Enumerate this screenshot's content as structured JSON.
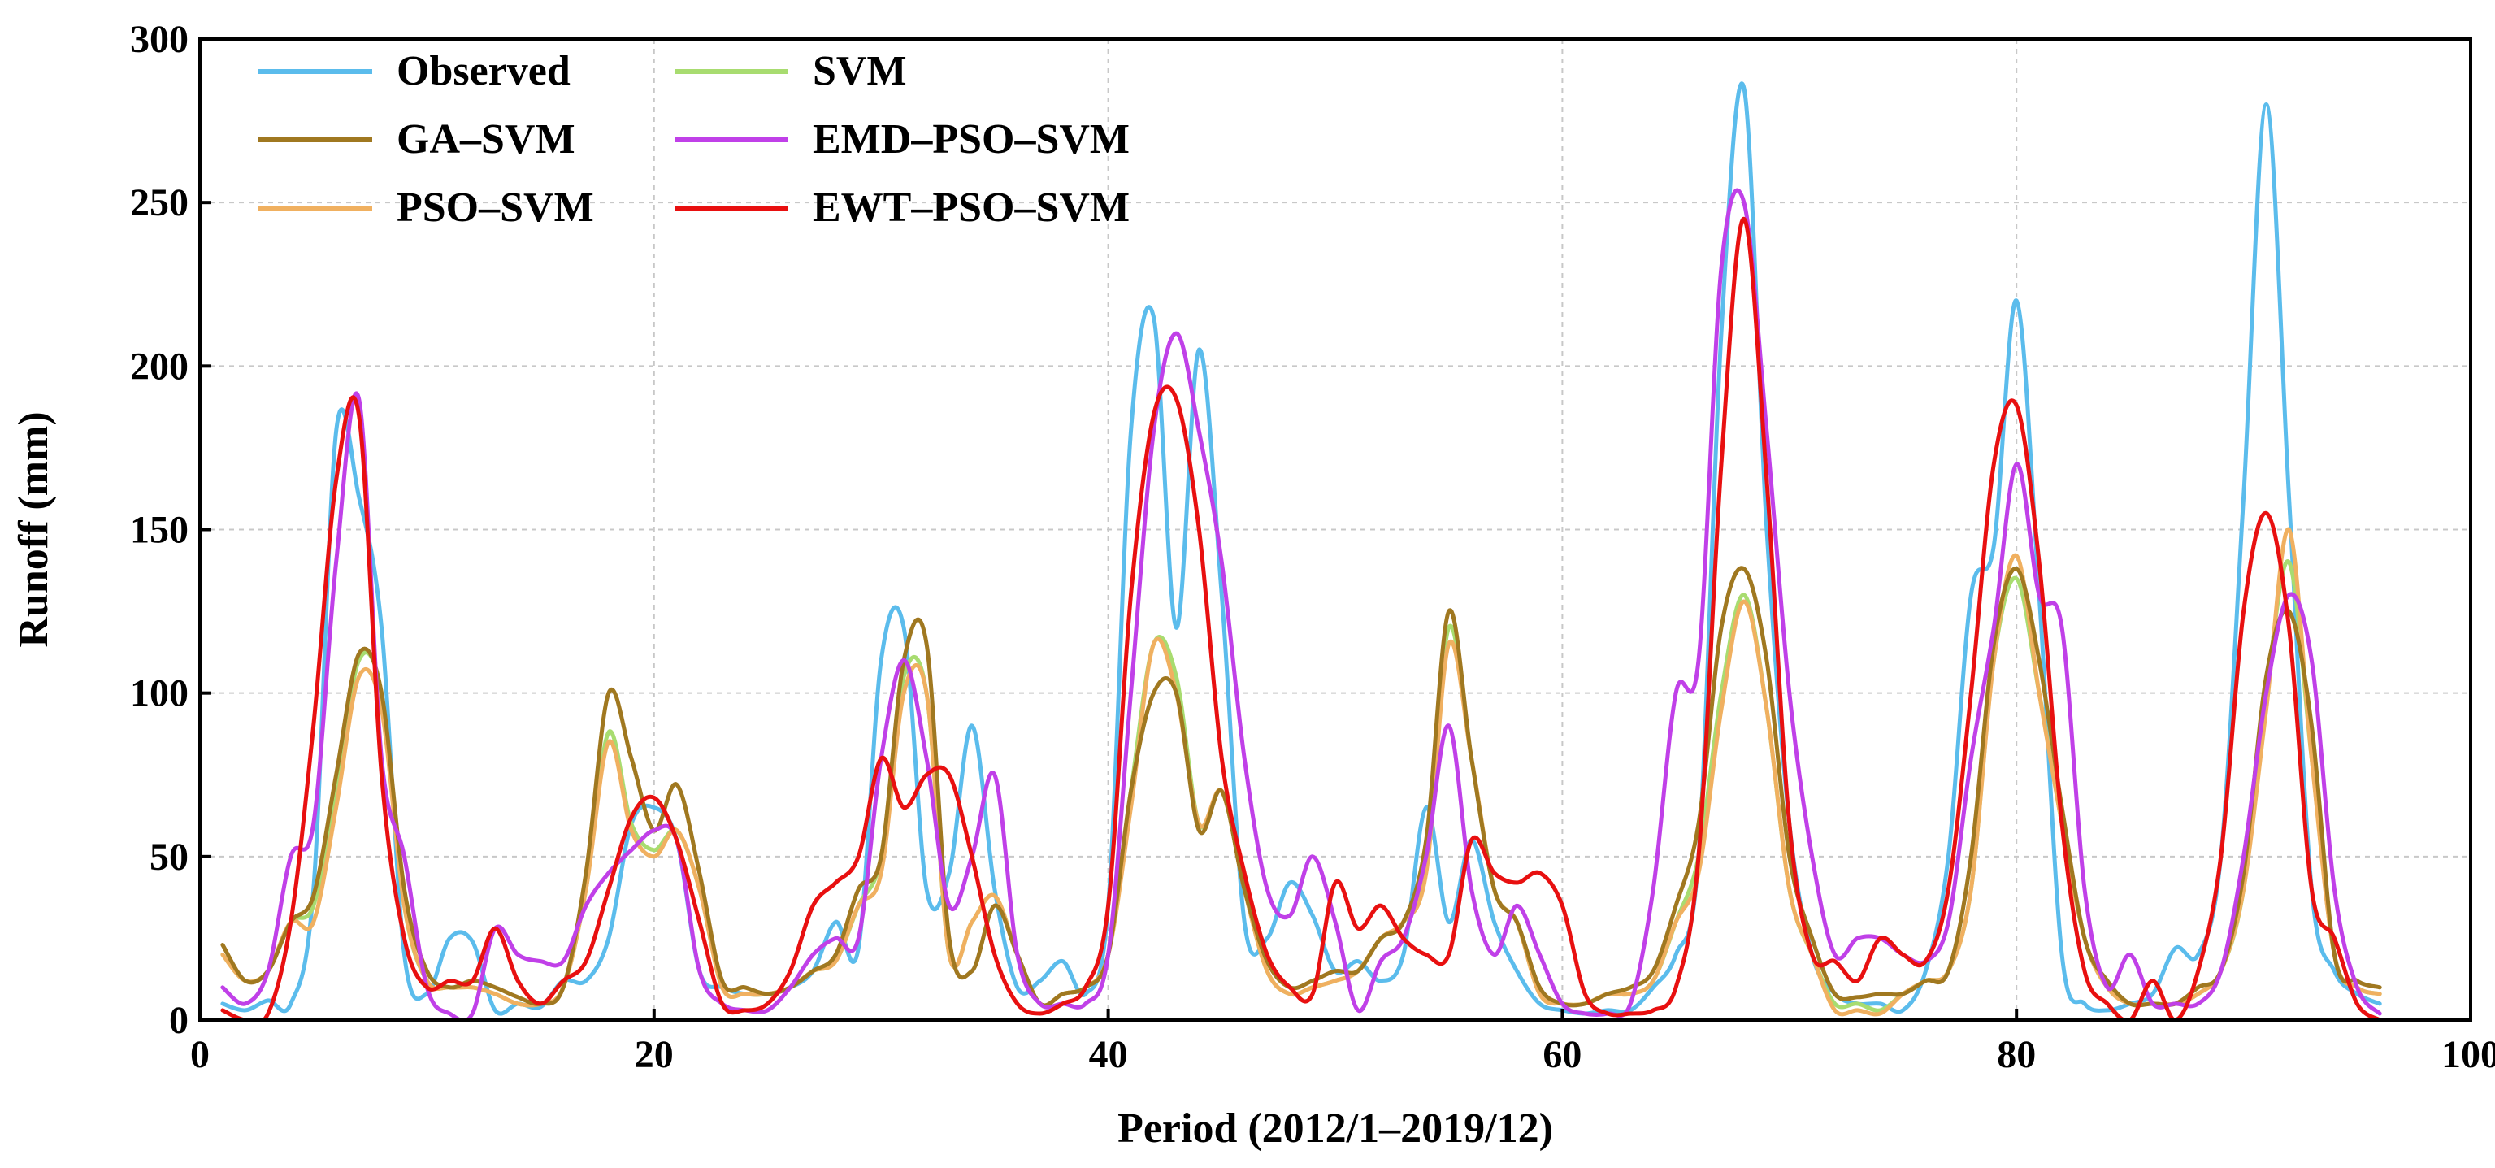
{
  "chart_data": {
    "type": "line",
    "title": "",
    "xlabel": "Period (2012/1–2019/12)",
    "ylabel": "Runoff (mm)",
    "xlim": [
      0,
      100
    ],
    "ylim": [
      0,
      300
    ],
    "xticks": [
      0,
      20,
      40,
      60,
      80,
      100
    ],
    "yticks": [
      0,
      50,
      100,
      150,
      200,
      250,
      300
    ],
    "grid": true,
    "legend_position": "top-left",
    "x": [
      1,
      2,
      3,
      4,
      5,
      6,
      7,
      8,
      9,
      10,
      11,
      12,
      13,
      14,
      15,
      16,
      17,
      18,
      19,
      20,
      21,
      22,
      23,
      24,
      25,
      26,
      27,
      28,
      29,
      30,
      31,
      32,
      33,
      34,
      35,
      36,
      37,
      38,
      39,
      40,
      41,
      42,
      43,
      44,
      45,
      46,
      47,
      48,
      49,
      50,
      51,
      52,
      53,
      54,
      55,
      56,
      57,
      58,
      59,
      60,
      61,
      62,
      63,
      64,
      65,
      66,
      67,
      68,
      69,
      70,
      71,
      72,
      73,
      74,
      75,
      76,
      77,
      78,
      79,
      80,
      81,
      82,
      83,
      84,
      85,
      86,
      87,
      88,
      89,
      90,
      91,
      92,
      93,
      94,
      95,
      96
    ],
    "series": [
      {
        "name": "Observed",
        "color": "#5bbcec",
        "values": [
          5,
          3,
          6,
          5,
          40,
          180,
          160,
          120,
          20,
          8,
          25,
          24,
          3,
          5,
          4,
          12,
          12,
          25,
          60,
          65,
          55,
          15,
          10,
          8,
          8,
          10,
          15,
          30,
          22,
          110,
          120,
          40,
          45,
          90,
          40,
          10,
          12,
          18,
          8,
          35,
          180,
          215,
          120,
          205,
          130,
          30,
          25,
          42,
          32,
          15,
          18,
          12,
          20,
          65,
          30,
          55,
          30,
          15,
          5,
          3,
          2,
          3,
          3,
          10,
          20,
          50,
          210,
          285,
          150,
          60,
          20,
          8,
          5,
          5,
          3,
          15,
          50,
          130,
          145,
          220,
          130,
          20,
          5,
          3,
          5,
          8,
          22,
          20,
          50,
          160,
          280,
          160,
          40,
          15,
          8,
          5
        ]
      },
      {
        "name": "SVM",
        "color": "#a8dc70",
        "values": [
          20,
          12,
          15,
          30,
          35,
          70,
          110,
          100,
          35,
          12,
          10,
          10,
          8,
          5,
          5,
          10,
          40,
          88,
          60,
          52,
          58,
          40,
          10,
          8,
          8,
          10,
          15,
          18,
          35,
          50,
          105,
          100,
          20,
          30,
          38,
          20,
          5,
          8,
          10,
          20,
          70,
          115,
          105,
          60,
          70,
          40,
          15,
          8,
          10,
          12,
          15,
          25,
          30,
          50,
          120,
          80,
          40,
          30,
          8,
          5,
          5,
          8,
          8,
          12,
          30,
          50,
          100,
          130,
          95,
          40,
          20,
          5,
          5,
          3,
          8,
          12,
          15,
          40,
          110,
          135,
          100,
          60,
          25,
          10,
          5,
          5,
          5,
          8,
          15,
          40,
          100,
          140,
          80,
          20,
          10,
          8
        ]
      },
      {
        "name": "GA–SVM",
        "color": "#a07820",
        "values": [
          23,
          12,
          15,
          30,
          38,
          75,
          112,
          100,
          40,
          15,
          10,
          12,
          10,
          7,
          5,
          10,
          45,
          100,
          80,
          58,
          72,
          45,
          12,
          10,
          8,
          10,
          15,
          20,
          40,
          50,
          110,
          115,
          25,
          15,
          35,
          20,
          5,
          8,
          10,
          20,
          70,
          100,
          100,
          58,
          70,
          40,
          18,
          10,
          12,
          15,
          15,
          25,
          30,
          55,
          125,
          80,
          40,
          30,
          10,
          5,
          5,
          8,
          10,
          15,
          35,
          60,
          120,
          138,
          110,
          50,
          25,
          8,
          7,
          8,
          8,
          12,
          15,
          50,
          115,
          138,
          110,
          65,
          25,
          12,
          5,
          5,
          5,
          10,
          15,
          45,
          105,
          125,
          90,
          20,
          12,
          10
        ]
      },
      {
        "name": "PSO–SVM",
        "color": "#f0b060",
        "values": [
          20,
          12,
          15,
          30,
          30,
          65,
          105,
          95,
          35,
          12,
          10,
          10,
          8,
          5,
          5,
          10,
          40,
          85,
          58,
          50,
          58,
          40,
          10,
          8,
          8,
          10,
          15,
          18,
          35,
          45,
          100,
          100,
          20,
          30,
          38,
          20,
          5,
          8,
          10,
          20,
          65,
          115,
          100,
          60,
          70,
          40,
          15,
          8,
          10,
          12,
          15,
          25,
          30,
          45,
          115,
          80,
          40,
          30,
          8,
          5,
          5,
          8,
          8,
          12,
          30,
          45,
          95,
          128,
          95,
          40,
          20,
          3,
          3,
          2,
          8,
          12,
          15,
          40,
          110,
          142,
          100,
          60,
          25,
          10,
          5,
          5,
          5,
          8,
          15,
          40,
          95,
          150,
          80,
          20,
          10,
          8
        ]
      },
      {
        "name": "EMD–PSO–SVM",
        "color": "#c040e8",
        "values": [
          10,
          5,
          15,
          50,
          60,
          140,
          190,
          80,
          50,
          10,
          2,
          2,
          28,
          20,
          18,
          18,
          35,
          45,
          52,
          58,
          55,
          15,
          5,
          3,
          3,
          10,
          20,
          25,
          25,
          80,
          110,
          80,
          35,
          50,
          75,
          20,
          5,
          5,
          5,
          20,
          100,
          180,
          210,
          180,
          140,
          80,
          40,
          32,
          50,
          30,
          3,
          18,
          25,
          50,
          90,
          40,
          20,
          35,
          20,
          5,
          2,
          2,
          5,
          40,
          100,
          110,
          230,
          250,
          180,
          100,
          50,
          20,
          25,
          25,
          20,
          18,
          30,
          80,
          120,
          170,
          130,
          120,
          40,
          10,
          20,
          5,
          5,
          5,
          15,
          50,
          100,
          130,
          110,
          40,
          10,
          2
        ]
      },
      {
        "name": "EWT–PSO–SVM",
        "color": "#e81010",
        "values": [
          3,
          0,
          2,
          30,
          90,
          165,
          185,
          75,
          25,
          10,
          12,
          12,
          28,
          12,
          5,
          12,
          18,
          40,
          62,
          68,
          55,
          30,
          5,
          3,
          5,
          15,
          35,
          42,
          50,
          80,
          65,
          75,
          75,
          50,
          20,
          5,
          2,
          5,
          10,
          35,
          130,
          185,
          190,
          150,
          80,
          45,
          20,
          10,
          8,
          42,
          28,
          35,
          25,
          20,
          20,
          55,
          45,
          42,
          45,
          35,
          8,
          2,
          2,
          3,
          10,
          50,
          170,
          245,
          165,
          60,
          20,
          18,
          12,
          25,
          20,
          18,
          40,
          100,
          170,
          188,
          140,
          60,
          15,
          5,
          0,
          12,
          0,
          15,
          50,
          125,
          155,
          120,
          40,
          25,
          5,
          0
        ]
      }
    ]
  }
}
